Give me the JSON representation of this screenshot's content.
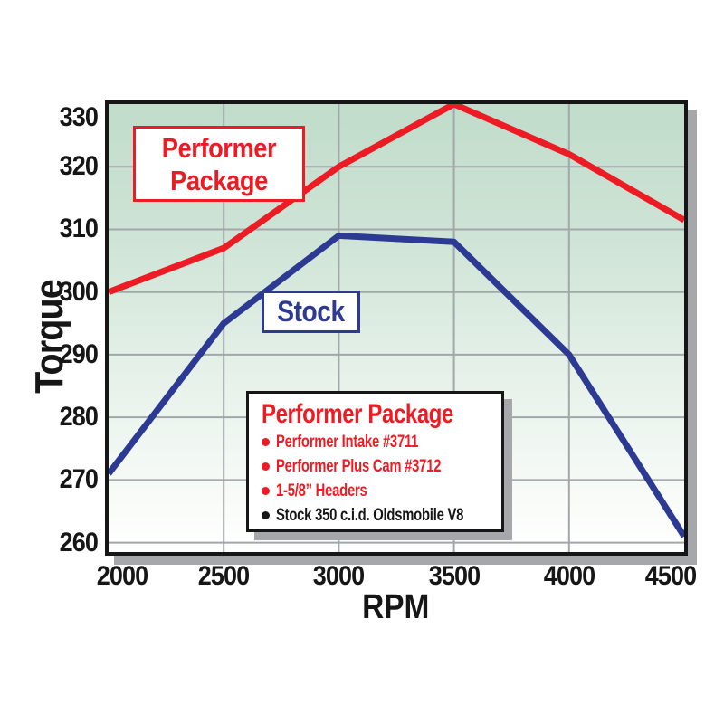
{
  "figure": {
    "colors": {
      "red": "#ed1c24",
      "blue": "#2c3a94",
      "grid": "#a2a7aa",
      "plot_border": "#161616",
      "shadow": "#a5a7aa",
      "text": "#161616",
      "plot_bg_top": "#c1dccb",
      "plot_bg_bottom": "#ffffff"
    }
  },
  "annotations": {
    "performer_box": {
      "line1": "Performer",
      "line2": "Package"
    },
    "stock_box": {
      "label": "Stock"
    }
  },
  "legend": {
    "title": "Performer Package",
    "items": [
      {
        "label": "Performer Intake #3711",
        "color": "#ed1c24"
      },
      {
        "label": "Performer Plus Cam #3712",
        "color": "#ed1c24"
      },
      {
        "label": "1-5/8” Headers",
        "color": "#ed1c24"
      },
      {
        "label": "Stock 350 c.i.d. Oldsmobile V8",
        "color": "#161616"
      }
    ]
  },
  "chart_data": {
    "type": "line",
    "title": "",
    "xlabel": "RPM",
    "ylabel": "Torque",
    "x": [
      2000,
      2500,
      3000,
      3500,
      4000,
      4500
    ],
    "series": [
      {
        "name": "Performer Package",
        "color": "#ed1c24",
        "values": [
          300,
          307,
          320,
          330,
          322,
          311.5
        ]
      },
      {
        "name": "Stock",
        "color": "#2c3a94",
        "values": [
          271,
          295,
          309,
          308,
          290,
          261
        ]
      }
    ],
    "x_ticks": [
      2000,
      2500,
      3000,
      3500,
      4000,
      4500
    ],
    "y_ticks": [
      330,
      320,
      310,
      300,
      290,
      280,
      270,
      260
    ],
    "xlim": [
      2000,
      4500
    ],
    "ylim": [
      258.5,
      330
    ],
    "grid": true,
    "legend_position": "inside-lower-center"
  }
}
